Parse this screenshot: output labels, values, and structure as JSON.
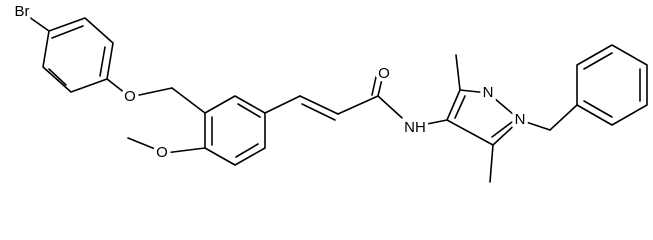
{
  "atoms": [
    "Br",
    "O",
    "O",
    "O",
    "NH",
    "N",
    "N"
  ]
}
